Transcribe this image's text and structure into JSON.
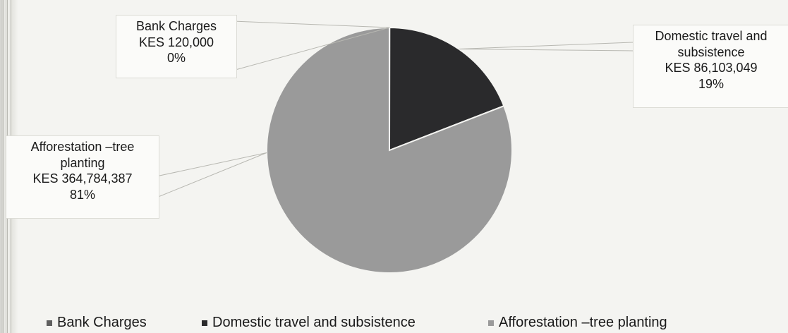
{
  "chart_data": {
    "type": "pie",
    "slices": [
      {
        "label": "Bank Charges",
        "value": 120000,
        "value_label": "KES 120,000",
        "percent_label": "0%",
        "color": "#5f5f5f"
      },
      {
        "label": "Domestic travel and subsistence",
        "value": 86103049,
        "value_label": "KES 86,103,049",
        "percent_label": "19%",
        "color": "#2a2a2c"
      },
      {
        "label": "Afforestation –tree planting",
        "value": 364784387,
        "value_label": "KES 364,784,387",
        "percent_label": "81%",
        "color": "#9a9a9a"
      }
    ],
    "callouts": {
      "bank": [
        "Bank Charges",
        "KES 120,000",
        "0%"
      ],
      "domestic": [
        "Domestic travel and",
        "subsistence",
        "KES 86,103,049",
        "19%"
      ],
      "afforestation": [
        "Afforestation –tree",
        "planting",
        "KES 364,784,387",
        "81%"
      ]
    },
    "legend": {
      "placement": "bottom",
      "items": [
        "Bank Charges",
        "Domestic travel and subsistence",
        "Afforestation –tree planting"
      ]
    }
  }
}
